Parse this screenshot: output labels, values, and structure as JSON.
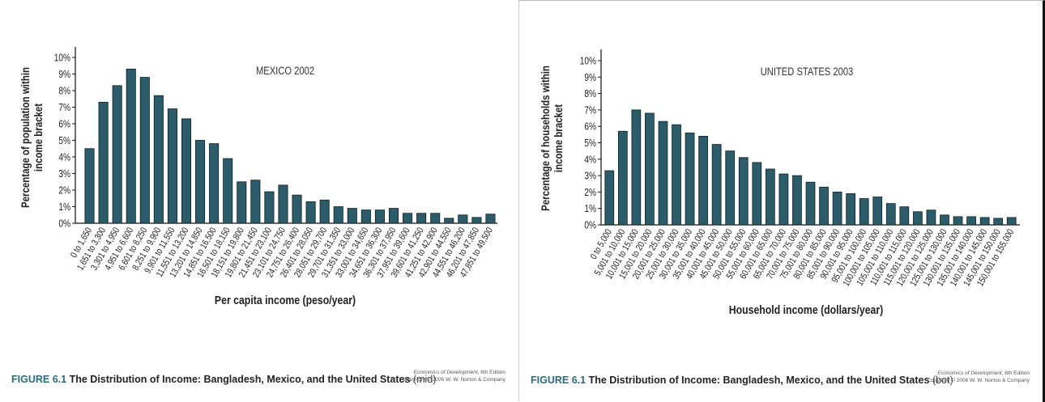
{
  "bar_color": "#2c5b69",
  "caption": {
    "figure_label": "FIGURE 6.1",
    "title": "The Distribution of Income: Bangladesh, Mexico, and the United States",
    "left_note": "(mid)",
    "right_note": "(bot)"
  },
  "credit": {
    "book": "Economics of Development",
    "edition": ", 6th Edition",
    "copyright": "Copyright © 2006 W. W. Norton & Company"
  },
  "chart_data": [
    {
      "type": "bar",
      "title": "MEXICO 2002",
      "xlabel": "Per capita income (peso/year)",
      "ylabel_lines": [
        "Percentage of population within",
        "income bracket"
      ],
      "ylim": [
        0,
        10
      ],
      "yticks": [
        "0%",
        "1%",
        "2%",
        "3%",
        "4%",
        "5%",
        "6%",
        "7%",
        "8%",
        "9%",
        "10%"
      ],
      "grid": false,
      "categories": [
        "0 to 1,650",
        "1,651 to 3,300",
        "3,301 to 4,950",
        "4,951 to 6,600",
        "6,601 to 8,250",
        "8,251 to 9,900",
        "9,901 to 11,550",
        "11,551 to 13,200",
        "13,201 to 14,850",
        "14,851 to 16,500",
        "16,501 to 18,150",
        "18,151 to 19,800",
        "19,801 to 21,450",
        "21,451 to 23,100",
        "23,101 to 24,750",
        "24,751 to 26,400",
        "26,401 to 28,050",
        "28,051 to 29,700",
        "29,701 to 31,350",
        "31,351 to 33,000",
        "33,001 to 34,650",
        "34,651 to 36,300",
        "36,301 to 37,950",
        "37,951 to 39,600",
        "39,601 to 41,250",
        "41,251 to 42,900",
        "42,901 to 44,550",
        "44,551 to 46,200",
        "46,201 to 47,850",
        "47,851 to 49,500"
      ],
      "values": [
        4.5,
        7.3,
        8.3,
        9.3,
        8.8,
        7.7,
        6.9,
        6.3,
        5.0,
        4.8,
        3.9,
        2.5,
        2.6,
        1.9,
        2.3,
        1.7,
        1.3,
        1.4,
        1.0,
        0.9,
        0.8,
        0.8,
        0.9,
        0.6,
        0.6,
        0.6,
        0.3,
        0.5,
        0.35,
        0.55
      ]
    },
    {
      "type": "bar",
      "title": "UNITED STATES 2003",
      "xlabel": "Household income (dollars/year)",
      "ylabel_lines": [
        "Percentage of households within",
        "income bracket"
      ],
      "ylim": [
        0,
        10
      ],
      "yticks": [
        "0%",
        "1%",
        "2%",
        "3%",
        "4%",
        "5%",
        "6%",
        "7%",
        "8%",
        "9%",
        "10%"
      ],
      "grid": false,
      "categories": [
        "0 to 5,000",
        "5,001 to 10,000",
        "10,001 to 15,000",
        "15,001 to 20,000",
        "20,001 to 25,000",
        "25,001 to 30,000",
        "30,001 to 35,000",
        "35,001 to 40,000",
        "40,001 to 45,000",
        "45,001 to 50,000",
        "50,001 to 55,000",
        "55,001 to 60,000",
        "60,001 to 65,000",
        "65,001 to 70,000",
        "70,001 to 75,000",
        "75,001 to 80,000",
        "80,001 to 85,000",
        "85,001 to 90,000",
        "90,001 to 95,000",
        "95,001 to 100,000",
        "100,001 to 105,000",
        "105,001 to 110,000",
        "110,001 to 115,000",
        "115,001 to 120,000",
        "120,001 to 125,000",
        "125,001 to 130,000",
        "130,001 to 135,000",
        "135,001 to 140,000",
        "140,001 to 145,000",
        "145,001 to 150,000",
        "150,001 to 155,000"
      ],
      "values": [
        3.3,
        5.7,
        7.0,
        6.8,
        6.3,
        6.1,
        5.6,
        5.4,
        4.9,
        4.5,
        4.1,
        3.8,
        3.4,
        3.1,
        3.0,
        2.6,
        2.3,
        2.0,
        1.9,
        1.6,
        1.7,
        1.3,
        1.1,
        0.8,
        0.9,
        0.6,
        0.5,
        0.5,
        0.45,
        0.4,
        0.45
      ]
    }
  ]
}
